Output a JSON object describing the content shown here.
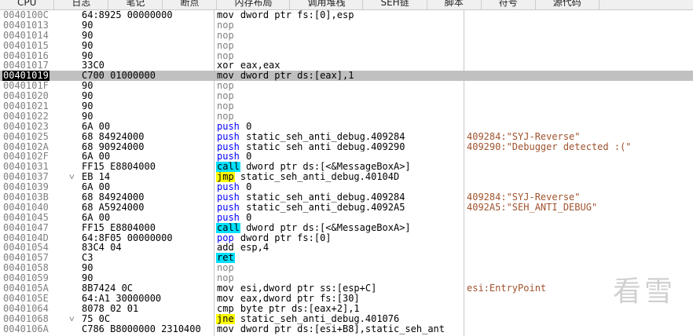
{
  "tabs": [
    "CPU",
    "日志",
    "笔记",
    "断点",
    "内存布局",
    "调用堆栈",
    "SEH链",
    "脚本",
    "符号",
    "源代码"
  ],
  "rows": [
    {
      "address": "0040100C",
      "bytes": "64:8925 00000000",
      "mnemonic": "mov",
      "operands": "dword ptr fs:[0],esp"
    },
    {
      "address": "00401013",
      "bytes": "90",
      "mnemonic": "nop",
      "operands": ""
    },
    {
      "address": "00401014",
      "bytes": "90",
      "mnemonic": "nop",
      "operands": ""
    },
    {
      "address": "00401015",
      "bytes": "90",
      "mnemonic": "nop",
      "operands": ""
    },
    {
      "address": "00401016",
      "bytes": "90",
      "mnemonic": "nop",
      "operands": ""
    },
    {
      "address": "00401017",
      "bytes": "33C0",
      "mnemonic": "xor",
      "operands": "eax,eax"
    },
    {
      "address": "00401019",
      "bytes": "C700 01000000",
      "mnemonic": "mov",
      "operands": "dword ptr ds:[eax],1"
    },
    {
      "address": "0040101F",
      "bytes": "90",
      "mnemonic": "nop",
      "operands": ""
    },
    {
      "address": "00401020",
      "bytes": "90",
      "mnemonic": "nop",
      "operands": ""
    },
    {
      "address": "00401021",
      "bytes": "90",
      "mnemonic": "nop",
      "operands": ""
    },
    {
      "address": "00401022",
      "bytes": "90",
      "mnemonic": "nop",
      "operands": ""
    },
    {
      "address": "00401023",
      "bytes": "6A 00",
      "mnemonic": "push",
      "operands": "0"
    },
    {
      "address": "00401025",
      "bytes": "68 84924000",
      "mnemonic": "push",
      "operands": "static_seh_anti_debug.409284",
      "comment": "409284:\"SYJ-Reverse\""
    },
    {
      "address": "0040102A",
      "bytes": "68 90924000",
      "mnemonic": "push",
      "operands": "static_seh_anti_debug.409290",
      "comment": "409290:\"Debugger detected :(\""
    },
    {
      "address": "0040102F",
      "bytes": "6A 00",
      "mnemonic": "push",
      "operands": "0"
    },
    {
      "address": "00401031",
      "bytes": "FF15 E8804000",
      "mnemonic": "call",
      "operands": "dword ptr ds:[<&MessageBoxA>]"
    },
    {
      "address": "00401037",
      "jump_mark": "˅",
      "bytes": "EB 14",
      "mnemonic": "jmp",
      "operands": "static_seh_anti_debug.40104D"
    },
    {
      "address": "00401039",
      "bytes": "6A 00",
      "mnemonic": "push",
      "operands": "0"
    },
    {
      "address": "0040103B",
      "bytes": "68 84924000",
      "mnemonic": "push",
      "operands": "static_seh_anti_debug.409284",
      "comment": "409284:\"SYJ-Reverse\""
    },
    {
      "address": "00401040",
      "bytes": "68 A5924000",
      "mnemonic": "push",
      "operands": "static_seh_anti_debug.4092A5",
      "comment": "4092A5:\"SEH_ANTI_DEBUG\""
    },
    {
      "address": "00401045",
      "bytes": "6A 00",
      "mnemonic": "push",
      "operands": "0"
    },
    {
      "address": "00401047",
      "bytes": "FF15 E8804000",
      "mnemonic": "call",
      "operands": "dword ptr ds:[<&MessageBoxA>]"
    },
    {
      "address": "0040104D",
      "bytes": "64:8F05 00000000",
      "mnemonic": "pop",
      "operands": "dword ptr fs:[0]"
    },
    {
      "address": "00401054",
      "bytes": "83C4 04",
      "mnemonic": "add",
      "operands": "esp,4"
    },
    {
      "address": "00401057",
      "bytes": "C3",
      "mnemonic": "ret",
      "operands": ""
    },
    {
      "address": "00401058",
      "bytes": "90",
      "mnemonic": "nop",
      "operands": ""
    },
    {
      "address": "00401059",
      "bytes": "90",
      "mnemonic": "nop",
      "operands": ""
    },
    {
      "address": "0040105A",
      "bytes": "8B7424 0C",
      "mnemonic": "mov",
      "operands": "esi,dword ptr ss:[esp+C]",
      "comment": "esi:EntryPoint"
    },
    {
      "address": "0040105E",
      "bytes": "64:A1 30000000",
      "mnemonic": "mov",
      "operands": "eax,dword ptr fs:[30]"
    },
    {
      "address": "00401064",
      "bytes": "8078 02 01",
      "mnemonic": "cmp",
      "operands": "byte ptr ds:[eax+2],1"
    },
    {
      "address": "00401068",
      "jump_mark": "˅",
      "bytes": "75 0C",
      "mnemonic": "jne",
      "operands": "static_seh_anti_debug.401076"
    },
    {
      "address": "0040106A",
      "bytes": "C786 B8000000 2310400",
      "mnemonic": "mov",
      "operands": "dword ptr ds:[esi+B8],static_seh_ant"
    }
  ],
  "watermark": "看雪"
}
